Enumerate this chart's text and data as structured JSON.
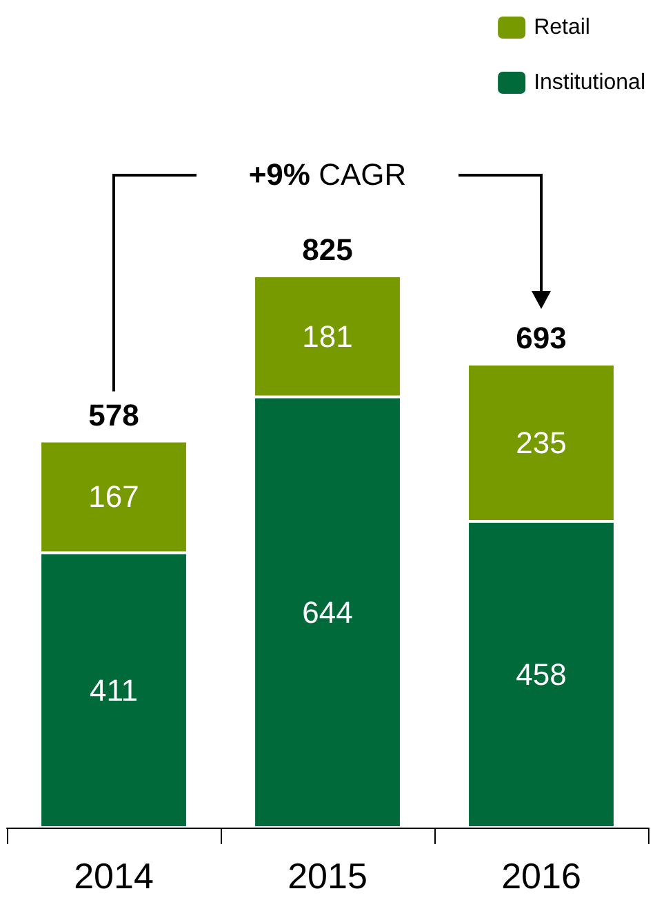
{
  "chart_data": {
    "type": "bar",
    "stacked": true,
    "categories": [
      "2014",
      "2015",
      "2016"
    ],
    "series": [
      {
        "name": "Institutional",
        "color": "#006a3b",
        "values": [
          411,
          644,
          458
        ]
      },
      {
        "name": "Retail",
        "color": "#779a00",
        "values": [
          167,
          181,
          235
        ]
      }
    ],
    "totals": [
      "578",
      "825",
      "693"
    ],
    "annotations": [
      "+9% CAGR"
    ],
    "data_labels": true,
    "legend": "top right",
    "tick_labels": "x",
    "grid": false
  }
}
